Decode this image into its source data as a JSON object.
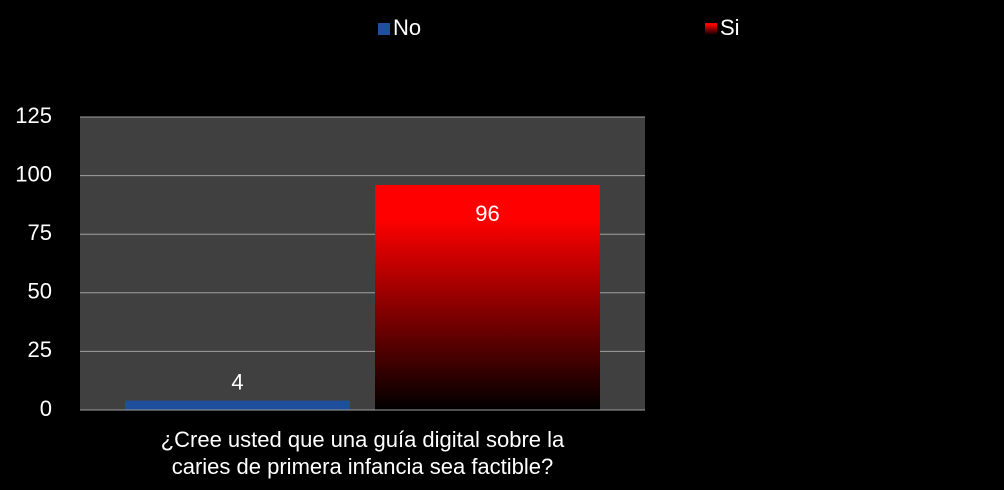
{
  "chart_data": {
    "type": "bar",
    "categories": [
      "¿Cree usted que una guía digital sobre la caries de primera infancia sea factible?"
    ],
    "series": [
      {
        "name": "No",
        "color": "#1f4e9c",
        "values": [
          4
        ]
      },
      {
        "name": "Si",
        "color": "#ff0000",
        "values": [
          96
        ]
      }
    ],
    "ylim": [
      0,
      125
    ],
    "yticks": [
      0,
      25,
      50,
      75,
      100,
      125
    ],
    "grid": true,
    "legend": "top"
  }
}
